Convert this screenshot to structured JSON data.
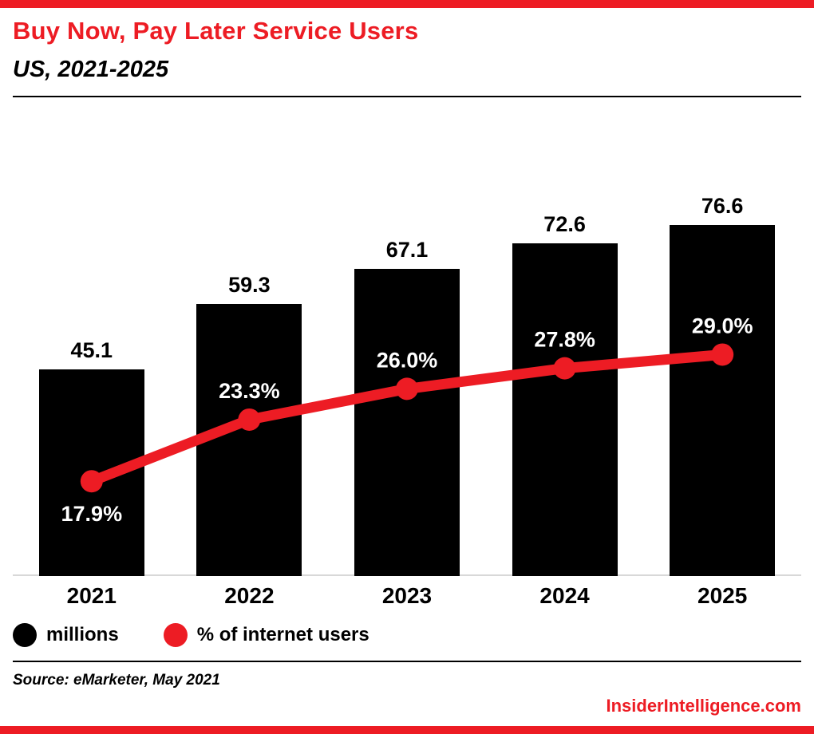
{
  "header": {
    "title": "Buy Now, Pay Later Service Users",
    "subtitle": "US, 2021-2025"
  },
  "chart_data": {
    "type": "bar",
    "title": "Buy Now, Pay Later Service Users",
    "subtitle": "US, 2021-2025",
    "categories": [
      "2021",
      "2022",
      "2023",
      "2024",
      "2025"
    ],
    "series": [
      {
        "name": "millions",
        "type": "bar",
        "color": "#000000",
        "values": [
          45.1,
          59.3,
          67.1,
          72.6,
          76.6
        ],
        "value_labels": [
          "45.1",
          "59.3",
          "67.1",
          "72.6",
          "76.6"
        ]
      },
      {
        "name": "% of internet users",
        "type": "line",
        "color": "#ed1c24",
        "values": [
          17.9,
          23.3,
          26.0,
          27.8,
          29.0
        ],
        "value_labels": [
          "17.9%",
          "23.3%",
          "26.0%",
          "27.8%",
          "29.0%"
        ]
      }
    ],
    "xlabel": "",
    "ylabel": "",
    "ylim_bar": [
      0,
      80
    ],
    "ylim_line": [
      0,
      35
    ],
    "grid": false,
    "legend_position": "bottom-left"
  },
  "legend": {
    "items": [
      {
        "label": "millions",
        "color": "#000000"
      },
      {
        "label": "% of internet users",
        "color": "#ed1c24"
      }
    ]
  },
  "footer": {
    "source": "Source: eMarketer, May 2021",
    "brand": "InsiderIntelligence.com"
  },
  "colors": {
    "accent": "#ed1c24",
    "bar": "#000000",
    "baseline": "#d8d8d8"
  }
}
